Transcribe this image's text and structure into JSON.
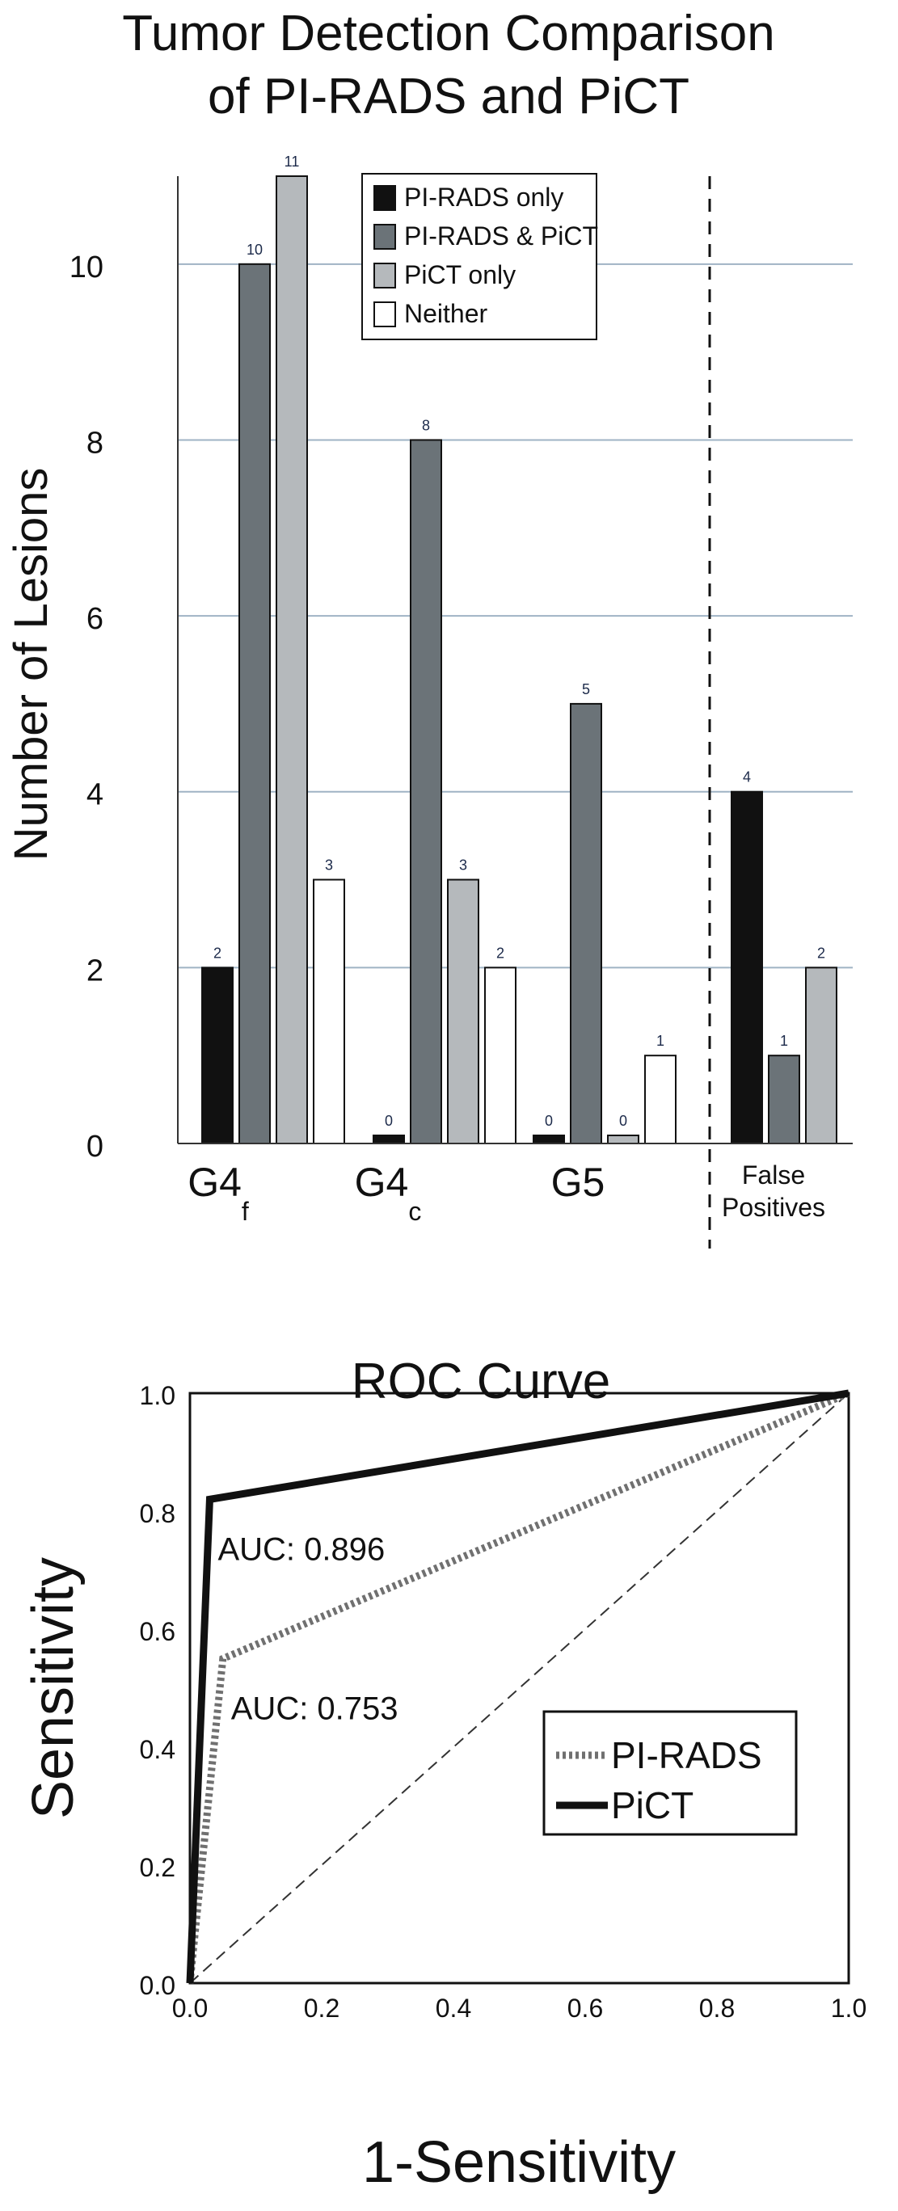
{
  "chart_data": [
    {
      "type": "bar",
      "title_lines": [
        "Tumor Detection Comparison",
        "of PI-RADS and PiCT"
      ],
      "ylabel": "Number of Lesions",
      "ylim": [
        0,
        11
      ],
      "yticks": [
        0,
        2,
        4,
        6,
        8,
        10
      ],
      "grid": true,
      "categories": [
        {
          "base": "G4",
          "sub": "f"
        },
        {
          "base": "G4",
          "sub": "c"
        },
        {
          "base": "G5",
          "sub": ""
        },
        {
          "lines": [
            "False",
            "Positives"
          ]
        }
      ],
      "series": [
        {
          "name": "PI-RADS only",
          "color": "#111111",
          "values": [
            2,
            0,
            0,
            4
          ]
        },
        {
          "name": "PI-RADS & PiCT",
          "color": "#6b7378",
          "values": [
            10,
            8,
            5,
            1
          ]
        },
        {
          "name": "PiCT only",
          "color": "#b5b9bc",
          "values": [
            11,
            3,
            0,
            2
          ]
        },
        {
          "name": "Neither",
          "color": "#ffffff",
          "values": [
            3,
            2,
            1,
            null
          ]
        }
      ],
      "legend": "top-center",
      "separator": "dashed line before False Positives"
    },
    {
      "type": "line",
      "title": "ROC Curve",
      "xlabel": "1-Sensitivity",
      "ylabel": "Sensitivity",
      "xlim": [
        0,
        1
      ],
      "ylim": [
        0,
        1
      ],
      "xticks": [
        "0.0",
        "0.2",
        "0.4",
        "0.6",
        "0.8",
        "1.0"
      ],
      "yticks": [
        "0.0",
        "0.2",
        "0.4",
        "0.6",
        "0.8",
        "1.0"
      ],
      "series": [
        {
          "name": "PI-RADS",
          "style": "dotted",
          "color": "#707070",
          "x": [
            0.0,
            0.05,
            1.0
          ],
          "y": [
            0.0,
            0.55,
            1.0
          ],
          "auc_label": "AUC: 0.753"
        },
        {
          "name": "PiCT",
          "style": "solid",
          "color": "#111111",
          "x": [
            0.0,
            0.03,
            1.0
          ],
          "y": [
            0.0,
            0.82,
            1.0
          ],
          "auc_label": "AUC: 0.896"
        }
      ],
      "reference_line": {
        "x": [
          0,
          1
        ],
        "y": [
          0,
          1
        ],
        "style": "dashed"
      },
      "legend": "lower-right"
    }
  ]
}
